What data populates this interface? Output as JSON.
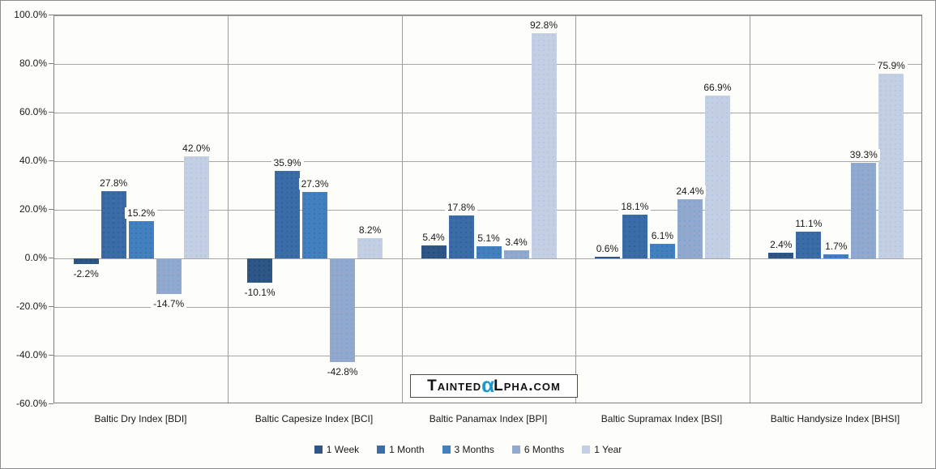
{
  "chart": {
    "background": "#FDFDFA",
    "plot_border_color": "#808080",
    "gridline_color": "#A6A6A6",
    "yticks": [
      "100.0%",
      "80.0%",
      "60.0%",
      "40.0%",
      "20.0%",
      "0.0%",
      "-20.0%",
      "-40.0%",
      "-60.0%"
    ]
  },
  "chart_data": {
    "type": "bar",
    "title": "",
    "xlabel": "",
    "ylabel": "",
    "ylim": [
      -60,
      100
    ],
    "ytick_step": 20,
    "grid": true,
    "legend_position": "bottom",
    "value_label_format": "0.0%",
    "categories": [
      "Baltic Dry Index [BDI]",
      "Baltic Capesize Index [BCI]",
      "Baltic Panamax Index [BPI]",
      "Baltic Supramax Index [BSI]",
      "Baltic Handysize Index [BHSI]"
    ],
    "series": [
      {
        "name": "1 Week",
        "color": "#2E5787",
        "dot": "#24496F",
        "values": [
          -2.2,
          -10.1,
          5.4,
          0.6,
          2.4
        ]
      },
      {
        "name": "1 Month",
        "color": "#3A6DA8",
        "dot": "#2E5D98",
        "values": [
          27.8,
          35.9,
          17.8,
          18.1,
          11.1
        ]
      },
      {
        "name": "3 Months",
        "color": "#4280BF",
        "dot": "#3670AE",
        "values": [
          15.2,
          27.3,
          5.1,
          6.1,
          1.7
        ]
      },
      {
        "name": "6 Months",
        "color": "#92A9CD",
        "dot": "#6FA5DA",
        "values": [
          -14.7,
          -42.8,
          3.4,
          24.4,
          39.3
        ]
      },
      {
        "name": "1 Year",
        "color": "#C4CFE3",
        "dot": "#A9C8E6",
        "values": [
          42.0,
          8.2,
          92.8,
          66.9,
          75.9
        ]
      }
    ]
  },
  "logo": {
    "text_left": "Tainted",
    "alpha": "α",
    "text_right": "lpha.com",
    "alpha_color": "#1E96D2"
  }
}
